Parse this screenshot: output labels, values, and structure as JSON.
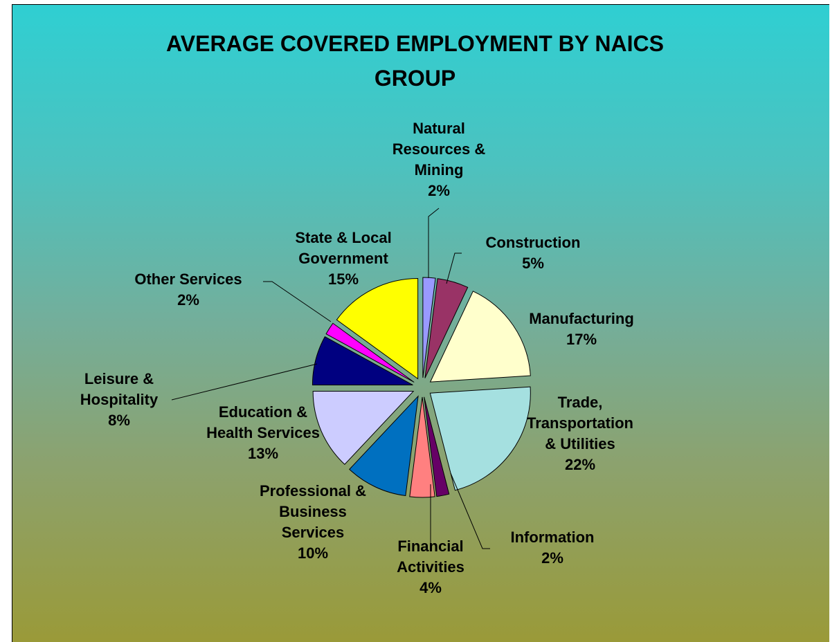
{
  "chart_data": {
    "type": "pie",
    "title_lines": [
      "AVERAGE COVERED EMPLOYMENT BY NAICS",
      "GROUP"
    ],
    "slices": [
      {
        "name": "Natural Resources & Mining",
        "label_lines": [
          "Natural",
          "Resources &",
          "Mining",
          "2%"
        ],
        "value": 2,
        "color": "#9999ff"
      },
      {
        "name": "Construction",
        "label_lines": [
          "Construction",
          "5%"
        ],
        "value": 5,
        "color": "#993366"
      },
      {
        "name": "Manufacturing",
        "label_lines": [
          "Manufacturing",
          "17%"
        ],
        "value": 17,
        "color": "#ffffcc"
      },
      {
        "name": "Trade, Transportation & Utilities",
        "label_lines": [
          "Trade,",
          "Transportation",
          "& Utilities",
          "22%"
        ],
        "value": 22,
        "color": "#a5e0e0"
      },
      {
        "name": "Information",
        "label_lines": [
          "Information",
          "2%"
        ],
        "value": 2,
        "color": "#660066"
      },
      {
        "name": "Financial Activities",
        "label_lines": [
          "Financial",
          "Activities",
          "4%"
        ],
        "value": 4,
        "color": "#ff8080"
      },
      {
        "name": "Professional & Business Services",
        "label_lines": [
          "Professional &",
          "Business",
          "Services",
          "10%"
        ],
        "value": 10,
        "color": "#0070c0"
      },
      {
        "name": "Education & Health Services",
        "label_lines": [
          "Education &",
          "Health Services",
          "13%"
        ],
        "value": 13,
        "color": "#ccccff"
      },
      {
        "name": "Leisure & Hospitality",
        "label_lines": [
          "Leisure &",
          "Hospitality",
          "8%"
        ],
        "value": 8,
        "color": "#000080"
      },
      {
        "name": "Other Services",
        "label_lines": [
          "Other Services",
          "2%"
        ],
        "value": 2,
        "color": "#ff00ff"
      },
      {
        "name": "State & Local Government",
        "label_lines": [
          "State & Local",
          "Government",
          "15%"
        ],
        "value": 15,
        "color": "#ffff00"
      }
    ]
  }
}
